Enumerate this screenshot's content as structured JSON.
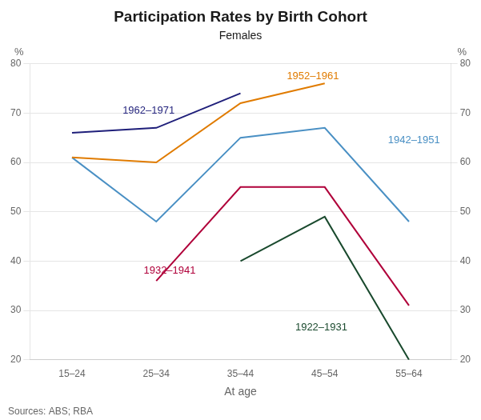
{
  "chart_data": {
    "type": "line",
    "title": "Participation Rates by Birth Cohort",
    "subtitle": "Females",
    "xlabel": "At age",
    "ylabel": "%",
    "y2label": "%",
    "source": "Sources: ABS; RBA",
    "categories": [
      "15–24",
      "25–34",
      "35–44",
      "45–54",
      "55–64"
    ],
    "series": [
      {
        "name": "1962–1971",
        "color": "#1f1f7a",
        "values": [
          66,
          67,
          74,
          null,
          null
        ]
      },
      {
        "name": "1952–1961",
        "color": "#e07b00",
        "values": [
          61,
          60,
          72,
          76,
          null
        ]
      },
      {
        "name": "1942–1951",
        "color": "#4a90c4",
        "values": [
          61,
          48,
          65,
          67,
          48
        ]
      },
      {
        "name": "1932–1941",
        "color": "#b0003a",
        "values": [
          null,
          36,
          55,
          55,
          31
        ]
      },
      {
        "name": "1922–1931",
        "color": "#1a4a2e",
        "values": [
          null,
          null,
          40,
          49,
          20
        ]
      }
    ],
    "ylim": [
      20,
      80
    ],
    "yticks": [
      20,
      30,
      40,
      50,
      60,
      70,
      80
    ],
    "y2lim": [
      20,
      80
    ],
    "y2ticks": [
      20,
      30,
      40,
      50,
      60,
      70,
      80
    ],
    "grid": true
  }
}
